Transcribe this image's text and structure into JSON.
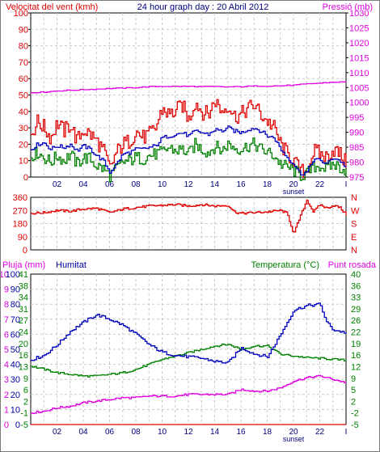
{
  "colors": {
    "wind": "#e00000",
    "wind_avg": "#0000c0",
    "wind_min": "#008000",
    "pressure": "#e000e0",
    "direction": "#e00000",
    "humidity": "#0000c0",
    "temperature": "#008000",
    "dewpoint": "#e000e0",
    "rain": "#e00000",
    "grid": "#c8c8c8",
    "axis": "#000000"
  },
  "chart_data": [
    {
      "type": "line",
      "title": "24 hour graph day : 20 Abril 2012",
      "ylabel_left": "Velocitat del vent (kmh)",
      "ylabel_right": "Pressió (mb)",
      "ylim_left": [
        0,
        100
      ],
      "ylim_right": [
        975,
        1030
      ],
      "y_ticks_left": [
        "0",
        "10",
        "20",
        "30",
        "40",
        "50",
        "60",
        "70",
        "80",
        "90",
        "100"
      ],
      "y_ticks_right": [
        "975",
        "980",
        "985",
        "990",
        "995",
        "1000",
        "1005",
        "1010",
        "1015",
        "1020",
        "1025",
        "1030"
      ],
      "x_ticks": [
        "02",
        "04",
        "06",
        "08",
        "10",
        "12",
        "14",
        "16",
        "18",
        "20",
        "22",
        "I"
      ],
      "x_note": "sunset",
      "x_range_hours": [
        0,
        24
      ],
      "series": [
        {
          "color_key": "wind",
          "axis": "left",
          "x": [
            0,
            0.5,
            1,
            1.5,
            2,
            2.5,
            3,
            3.5,
            4,
            4.5,
            5,
            5.5,
            6,
            6.5,
            7,
            7.5,
            8,
            8.5,
            9,
            9.5,
            10,
            10.5,
            11,
            11.5,
            12,
            12.5,
            13,
            13.5,
            14,
            14.5,
            15,
            15.5,
            16,
            16.5,
            17,
            17.5,
            18,
            18.5,
            19,
            19.5,
            20,
            20.5,
            21,
            21.5,
            22,
            22.5,
            23,
            23.5,
            24
          ],
          "values": [
            26,
            34,
            30,
            24,
            33,
            28,
            32,
            22,
            29,
            26,
            22,
            16,
            5,
            15,
            20,
            22,
            28,
            24,
            26,
            30,
            42,
            38,
            40,
            44,
            35,
            46,
            40,
            38,
            47,
            40,
            44,
            37,
            38,
            42,
            44,
            38,
            34,
            30,
            20,
            14,
            10,
            3,
            4,
            16,
            14,
            12,
            17,
            14,
            8
          ]
        },
        {
          "color_key": "wind_avg",
          "axis": "left",
          "x": [
            0,
            0.5,
            1,
            1.5,
            2,
            2.5,
            3,
            3.5,
            4,
            4.5,
            5,
            5.5,
            6,
            6.5,
            7,
            7.5,
            8,
            8.5,
            9,
            9.5,
            10,
            10.5,
            11,
            11.5,
            12,
            12.5,
            13,
            13.5,
            14,
            14.5,
            15,
            15.5,
            16,
            16.5,
            17,
            17.5,
            18,
            18.5,
            19,
            19.5,
            20,
            20.5,
            21,
            21.5,
            22,
            22.5,
            23,
            23.5,
            24
          ],
          "values": [
            17,
            20,
            21,
            17,
            19,
            18,
            20,
            16,
            19,
            17,
            13,
            10,
            3,
            8,
            14,
            15,
            17,
            17,
            18,
            19,
            24,
            25,
            26,
            27,
            25,
            28,
            27,
            26,
            29,
            28,
            30,
            28,
            27,
            29,
            30,
            28,
            25,
            24,
            17,
            12,
            8,
            2,
            3,
            11,
            10,
            8,
            12,
            10,
            6
          ]
        },
        {
          "color_key": "wind_min",
          "axis": "left",
          "x": [
            0,
            0.5,
            1,
            1.5,
            2,
            2.5,
            3,
            3.5,
            4,
            4.5,
            5,
            5.5,
            6,
            6.5,
            7,
            7.5,
            8,
            8.5,
            9,
            9.5,
            10,
            10.5,
            11,
            11.5,
            12,
            12.5,
            13,
            13.5,
            14,
            14.5,
            15,
            15.5,
            16,
            16.5,
            17,
            17.5,
            18,
            18.5,
            19,
            19.5,
            20,
            20.5,
            21,
            21.5,
            22,
            22.5,
            23,
            23.5,
            24
          ],
          "values": [
            13,
            15,
            12,
            9,
            13,
            10,
            14,
            8,
            12,
            11,
            7,
            5,
            1,
            5,
            9,
            10,
            12,
            11,
            13,
            14,
            15,
            18,
            16,
            17,
            14,
            20,
            17,
            15,
            19,
            16,
            20,
            18,
            17,
            19,
            20,
            17,
            15,
            13,
            8,
            6,
            4,
            1,
            2,
            6,
            7,
            5,
            8,
            6,
            4
          ]
        },
        {
          "color_key": "pressure",
          "axis": "right",
          "x": [
            0,
            1,
            2,
            3,
            4,
            5,
            6,
            7,
            8,
            9,
            10,
            11,
            12,
            13,
            14,
            15,
            16,
            17,
            18,
            19,
            20,
            21,
            22,
            23,
            24
          ],
          "values": [
            1003.3,
            1003.5,
            1003.9,
            1004.1,
            1004.3,
            1004.5,
            1004.7,
            1004.8,
            1005.0,
            1005.3,
            1005.4,
            1005.4,
            1005.4,
            1005.3,
            1005.3,
            1005.2,
            1005.3,
            1005.5,
            1005.5,
            1005.6,
            1005.8,
            1006.2,
            1006.5,
            1006.8,
            1006.9
          ]
        }
      ]
    },
    {
      "type": "line",
      "y_ticks_left": [
        "0",
        "90",
        "180",
        "270",
        "360"
      ],
      "y_ticks_right": [
        "N",
        "E",
        "S",
        "W",
        "N"
      ],
      "ylim": [
        0,
        360
      ],
      "x_range_hours": [
        0,
        24
      ],
      "series": [
        {
          "color_key": "direction",
          "x": [
            0,
            1,
            2,
            3,
            4,
            5,
            6,
            7,
            8,
            9,
            10,
            11,
            12,
            13,
            14,
            15,
            15.5,
            16,
            17,
            18,
            19,
            19.5,
            20,
            20.5,
            21,
            21.5,
            22,
            22.5,
            23,
            23.5,
            24
          ],
          "values": [
            250,
            255,
            270,
            265,
            280,
            285,
            255,
            280,
            290,
            300,
            305,
            310,
            300,
            310,
            300,
            305,
            260,
            250,
            255,
            260,
            270,
            250,
            110,
            230,
            340,
            260,
            310,
            285,
            305,
            290,
            240
          ]
        }
      ]
    },
    {
      "type": "line",
      "ylabel_left": "Pluja (mm)",
      "ylabel_left2": "Humitat",
      "ylabel_right": "Temperatura (°C)",
      "ylabel_right2": "Punt rosada",
      "y_ticks_rain": [
        "0",
        "1",
        "2",
        "3",
        "4",
        "5",
        "6",
        "7",
        "8",
        "9",
        "10"
      ],
      "y_ticks_humidity": [
        "0",
        "10",
        "20",
        "30",
        "40",
        "50",
        "60",
        "70",
        "80",
        "90",
        "100"
      ],
      "y_ticks_temp": [
        "-5",
        "-1",
        "2",
        "6",
        "9",
        "13",
        "16",
        "20",
        "24",
        "27",
        "31",
        "34",
        "38",
        "41"
      ],
      "y_ticks_temp_right": [
        "-5",
        "-2",
        "2",
        "5",
        "9",
        "12",
        "16",
        "19",
        "22",
        "26",
        "29",
        "33",
        "36",
        "40"
      ],
      "ylim_humidity": [
        0,
        100
      ],
      "ylim_temp": [
        -5,
        40
      ],
      "x_ticks": [
        "02",
        "04",
        "06",
        "08",
        "10",
        "12",
        "14",
        "16",
        "18",
        "20",
        "22",
        "I"
      ],
      "x_note": "sunset",
      "x_range_hours": [
        0,
        24
      ],
      "series": [
        {
          "color_key": "humidity",
          "axis": "humidity",
          "x": [
            0,
            1,
            2,
            3,
            4,
            5,
            6,
            7,
            8,
            9,
            10,
            11,
            12,
            13,
            14,
            15,
            16,
            17,
            18,
            19,
            20,
            21,
            22,
            22.5,
            23,
            23.5,
            24
          ],
          "values": [
            43,
            46,
            53,
            62,
            68,
            73,
            70,
            66,
            60,
            53,
            48,
            46,
            45,
            44,
            42,
            41,
            51,
            47,
            45,
            60,
            76,
            79,
            80,
            68,
            63,
            62,
            61
          ]
        },
        {
          "color_key": "temperature",
          "axis": "temp",
          "x": [
            0,
            1,
            2,
            3,
            4,
            5,
            6,
            7,
            8,
            9,
            10,
            11,
            12,
            13,
            14,
            15,
            16,
            17,
            18,
            19,
            20,
            21,
            22,
            23,
            24
          ],
          "values": [
            12.5,
            11.5,
            10.5,
            10,
            9.5,
            9.5,
            10,
            10.5,
            11.5,
            13,
            14.5,
            15.5,
            16.5,
            17.5,
            18.5,
            19,
            17.5,
            18.5,
            18.5,
            16,
            15.5,
            15,
            14.8,
            14.5,
            14.2
          ]
        },
        {
          "color_key": "dewpoint",
          "axis": "temp",
          "x": [
            0,
            1,
            2,
            3,
            4,
            5,
            6,
            7,
            8,
            9,
            10,
            11,
            12,
            13,
            14,
            15,
            16,
            17,
            18,
            19,
            20,
            21,
            22,
            23,
            24
          ],
          "values": [
            -1.5,
            -1,
            0,
            0.5,
            1.5,
            2,
            2.5,
            3,
            3,
            3.5,
            3.5,
            3.5,
            4,
            4,
            4,
            4,
            5.5,
            5,
            5,
            6,
            8,
            9,
            9.5,
            8.5,
            7.5
          ]
        },
        {
          "color_key": "rain",
          "axis": "humidity",
          "x": [
            0,
            24
          ],
          "values": [
            0,
            0
          ]
        }
      ]
    }
  ]
}
